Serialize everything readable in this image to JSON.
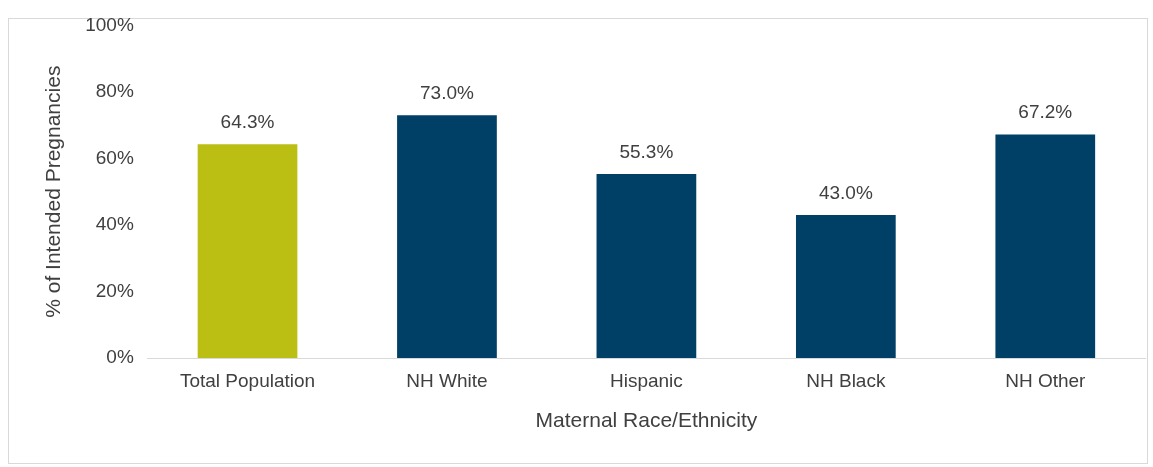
{
  "chart_data": {
    "type": "bar",
    "xlabel": "Maternal Race/Ethnicity",
    "ylabel": "% of Intended Pregnancies",
    "categories": [
      "Total Population",
      "NH White",
      "Hispanic",
      "NH Black",
      "NH Other"
    ],
    "values": [
      64.3,
      73.0,
      55.3,
      43.0,
      67.2
    ],
    "colors": [
      "#bbbf14",
      "#003f66",
      "#003f66",
      "#003f66",
      "#003f66"
    ],
    "value_labels": [
      "64.3%",
      "73.0%",
      "55.3%",
      "43.0%",
      "67.2%"
    ],
    "ylim": [
      0,
      100
    ],
    "yticks": [
      {
        "value": 0,
        "label": "0%"
      },
      {
        "value": 20,
        "label": "20%"
      },
      {
        "value": 40,
        "label": "40%"
      },
      {
        "value": 60,
        "label": "60%"
      },
      {
        "value": 80,
        "label": "80%"
      },
      {
        "value": 100,
        "label": "100%"
      }
    ],
    "grid": false,
    "legend": false
  }
}
